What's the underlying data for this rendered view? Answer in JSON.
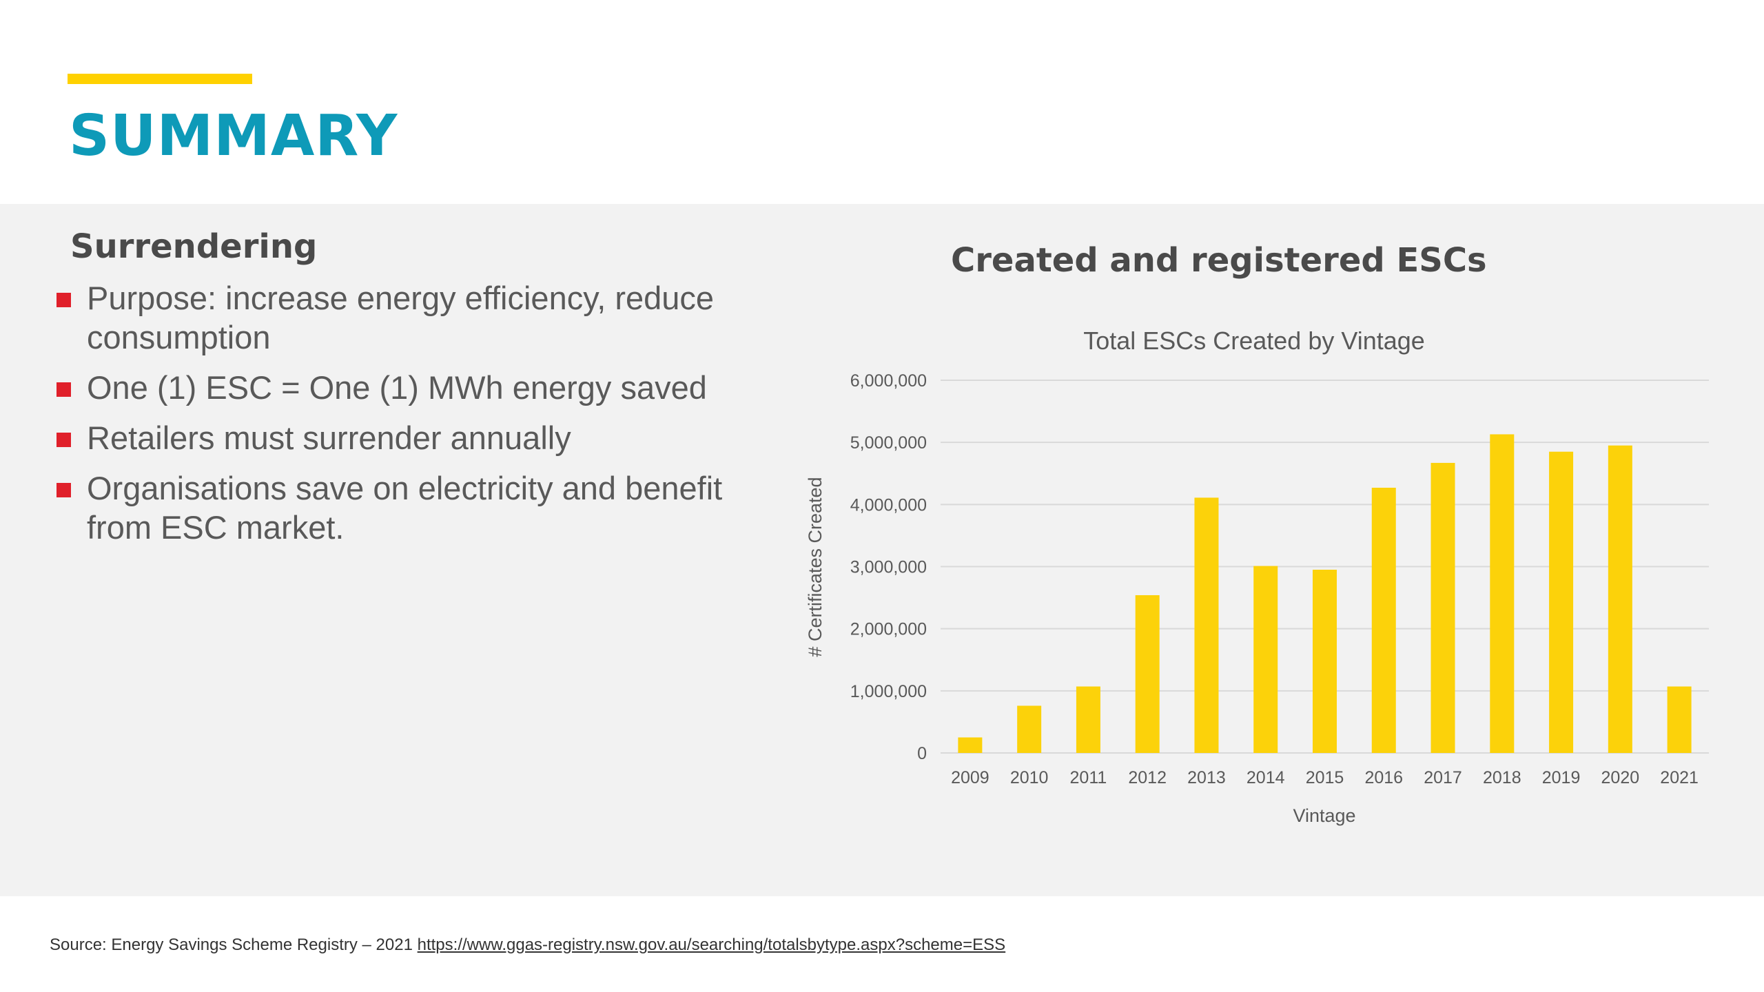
{
  "page": {
    "title": "SUMMARY",
    "colors": {
      "accent": "#FFD100",
      "title": "#0E9AB8",
      "bullet": "#E0202A",
      "bar": "#FCD20A",
      "band": "#F2F2F2"
    }
  },
  "left": {
    "heading": "Surrendering",
    "bullets": [
      "Purpose: increase energy efficiency, reduce consumption",
      "One (1) ESC = One (1) MWh energy saved",
      "Retailers must surrender annually",
      "Organisations save on electricity and benefit from ESC market."
    ]
  },
  "chart_heading": "Created and registered ESCs",
  "chart_data": {
    "type": "bar",
    "title": "Total ESCs Created by Vintage",
    "xlabel": "Vintage",
    "ylabel": "# Certificates Created",
    "categories": [
      "2009",
      "2010",
      "2011",
      "2012",
      "2013",
      "2014",
      "2015",
      "2016",
      "2017",
      "2018",
      "2019",
      "2020",
      "2021"
    ],
    "values": [
      250000,
      760000,
      1070000,
      2540000,
      4110000,
      3010000,
      2950000,
      4270000,
      4670000,
      5130000,
      4850000,
      4950000,
      1070000
    ],
    "ylim": [
      0,
      6000000
    ],
    "yticks": [
      0,
      1000000,
      2000000,
      3000000,
      4000000,
      5000000,
      6000000
    ],
    "ytick_labels": [
      "0",
      "1,000,000",
      "2,000,000",
      "3,000,000",
      "4,000,000",
      "5,000,000",
      "6,000,000"
    ],
    "grid": true,
    "legend": "none"
  },
  "footer": {
    "source_text": "Source: Energy Savings Scheme Registry – 2021",
    "source_url": "https://www.ggas-registry.nsw.gov.au/searching/totalsbytype.aspx?scheme=ESS"
  }
}
